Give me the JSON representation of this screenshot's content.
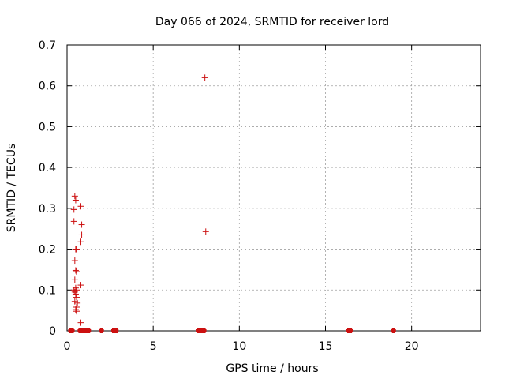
{
  "chart_data": {
    "type": "scatter",
    "title": "Day 066 of 2024, SRMTID for receiver lord",
    "xlabel": "GPS time / hours",
    "ylabel": "SRMTID / TECUs",
    "xlim": [
      0,
      24
    ],
    "ylim": [
      0,
      0.7
    ],
    "xticks": [
      0,
      5,
      10,
      15,
      20
    ],
    "yticks": [
      0,
      0.1,
      0.2,
      0.3,
      0.4,
      0.5,
      0.6,
      0.7
    ],
    "xtick_labels": [
      "0",
      "5",
      "10",
      "15",
      "20"
    ],
    "ytick_labels": [
      "0",
      "0.1",
      "0.2",
      "0.3",
      "0.4",
      "0.5",
      "0.6",
      "0.7"
    ],
    "grid": true,
    "marker": "plus",
    "color": "#cc1010",
    "series": [
      {
        "points": [
          {
            "x": 0.45,
            "y": 0.33
          },
          {
            "x": 0.5,
            "y": 0.32
          },
          {
            "x": 0.4,
            "y": 0.297
          },
          {
            "x": 0.8,
            "y": 0.305
          },
          {
            "x": 0.4,
            "y": 0.268
          },
          {
            "x": 0.85,
            "y": 0.26
          },
          {
            "x": 0.85,
            "y": 0.235
          },
          {
            "x": 0.8,
            "y": 0.218
          },
          {
            "x": 0.5,
            "y": 0.2
          },
          {
            "x": 0.55,
            "y": 0.2
          },
          {
            "x": 0.45,
            "y": 0.172
          },
          {
            "x": 0.5,
            "y": 0.148
          },
          {
            "x": 0.55,
            "y": 0.145
          },
          {
            "x": 0.45,
            "y": 0.125
          },
          {
            "x": 0.8,
            "y": 0.112
          },
          {
            "x": 0.5,
            "y": 0.105
          },
          {
            "x": 0.4,
            "y": 0.1
          },
          {
            "x": 0.55,
            "y": 0.1
          },
          {
            "x": 0.45,
            "y": 0.095
          },
          {
            "x": 0.5,
            "y": 0.09
          },
          {
            "x": 0.55,
            "y": 0.082
          },
          {
            "x": 0.45,
            "y": 0.072
          },
          {
            "x": 0.6,
            "y": 0.068
          },
          {
            "x": 0.55,
            "y": 0.058
          },
          {
            "x": 0.5,
            "y": 0.052
          },
          {
            "x": 0.55,
            "y": 0.048
          },
          {
            "x": 0.8,
            "y": 0.02
          },
          {
            "x": 8.0,
            "y": 0.62
          },
          {
            "x": 8.05,
            "y": 0.243
          },
          {
            "x": 0.2,
            "y": 0
          },
          {
            "x": 0.3,
            "y": 0
          },
          {
            "x": 0.75,
            "y": 0
          },
          {
            "x": 0.85,
            "y": 0
          },
          {
            "x": 0.95,
            "y": 0
          },
          {
            "x": 1.05,
            "y": 0
          },
          {
            "x": 1.15,
            "y": 0
          },
          {
            "x": 1.25,
            "y": 0
          },
          {
            "x": 2.0,
            "y": 0
          },
          {
            "x": 2.7,
            "y": 0
          },
          {
            "x": 2.85,
            "y": 0
          },
          {
            "x": 7.65,
            "y": 0
          },
          {
            "x": 7.75,
            "y": 0
          },
          {
            "x": 7.85,
            "y": 0
          },
          {
            "x": 7.95,
            "y": 0
          },
          {
            "x": 16.35,
            "y": 0
          },
          {
            "x": 16.45,
            "y": 0
          },
          {
            "x": 18.95,
            "y": 0
          }
        ]
      }
    ]
  }
}
